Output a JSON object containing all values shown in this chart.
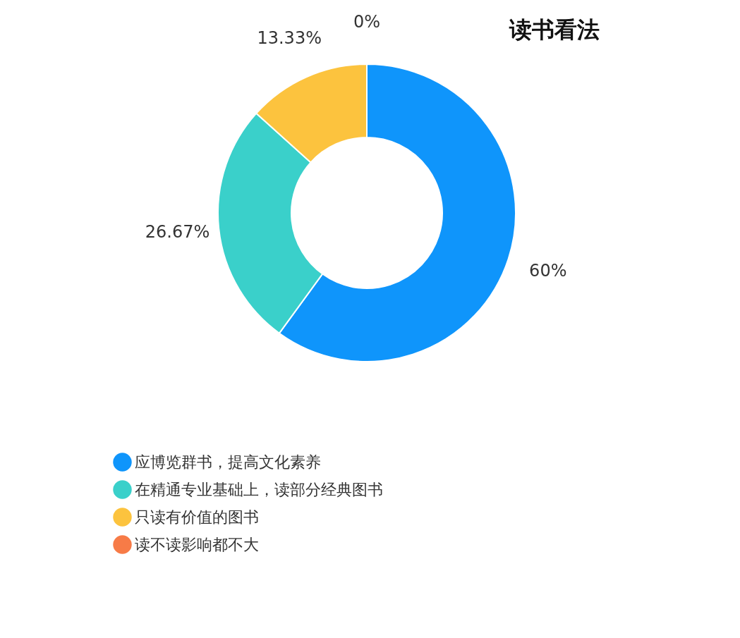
{
  "chart_data": {
    "type": "donut",
    "title": "读书看法",
    "categories": [
      "应博览群书，提高文化素养",
      "在精通专业基础上，读部分经典图书",
      "只读有价值的图书",
      "读不读影响都不大"
    ],
    "values": [
      60,
      26.67,
      13.33,
      0
    ],
    "colors": [
      "#0f95fb",
      "#3ad0ca",
      "#fcc33e",
      "#f77b47"
    ],
    "value_labels": [
      "60%",
      "26.67%",
      "13.33%",
      "0%"
    ],
    "legend": "bottom"
  }
}
